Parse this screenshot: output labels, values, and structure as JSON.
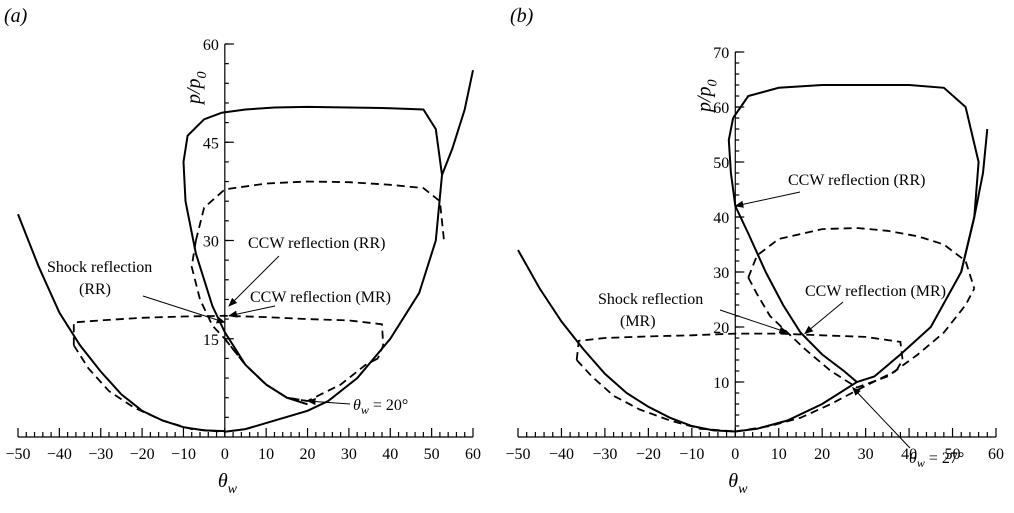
{
  "chart_data": [
    {
      "panel_label": "(a)",
      "type": "line",
      "xlabel": "θ_w",
      "ylabel": "p/p_0",
      "xlim": [
        -50,
        60
      ],
      "ylim": [
        0,
        60
      ],
      "x_ticks": [
        -50,
        -40,
        -30,
        -20,
        -10,
        0,
        10,
        20,
        30,
        40,
        50,
        60
      ],
      "y_ticks": [
        15,
        30,
        45,
        60
      ],
      "curves": {
        "solid_upper_loop": [
          [
            -0.8,
            49.5
          ],
          [
            5,
            50
          ],
          [
            12,
            50.3
          ],
          [
            20,
            50.4
          ],
          [
            30,
            50.3
          ],
          [
            40,
            50.2
          ],
          [
            48,
            50
          ],
          [
            51,
            47
          ],
          [
            52.5,
            40
          ],
          [
            51,
            30
          ],
          [
            47,
            22
          ],
          [
            40,
            15
          ],
          [
            32,
            9
          ],
          [
            25,
            5.5
          ],
          [
            20,
            4
          ],
          [
            12,
            2.5
          ],
          [
            5,
            1.2
          ],
          [
            0,
            0.8
          ]
        ],
        "solid_upper_loop_left": [
          [
            -0.8,
            49.5
          ],
          [
            -5,
            48.5
          ],
          [
            -9,
            46
          ],
          [
            -10,
            42
          ],
          [
            -9.5,
            36
          ],
          [
            -7,
            28
          ],
          [
            -3,
            20
          ],
          [
            0,
            16
          ],
          [
            5,
            11
          ],
          [
            10,
            8
          ],
          [
            15,
            6
          ],
          [
            20,
            5
          ]
        ],
        "solid_right_branch": [
          [
            52.5,
            40
          ],
          [
            55,
            44
          ],
          [
            58,
            50
          ],
          [
            60,
            56
          ]
        ],
        "solid_left_parabola": [
          [
            -50,
            34
          ],
          [
            -45,
            26
          ],
          [
            -40,
            19
          ],
          [
            -35,
            14
          ],
          [
            -30,
            10
          ],
          [
            -25,
            6.5
          ],
          [
            -20,
            4
          ],
          [
            -15,
            2.5
          ],
          [
            -10,
            1.5
          ],
          [
            -5,
            1
          ],
          [
            0,
            0.9
          ]
        ],
        "dashed_upper_loop": [
          [
            -7,
            30
          ],
          [
            -5,
            35
          ],
          [
            0,
            37.8
          ],
          [
            10,
            38.7
          ],
          [
            20,
            39
          ],
          [
            30,
            38.9
          ],
          [
            40,
            38.5
          ],
          [
            48,
            38
          ],
          [
            52,
            36
          ],
          [
            53,
            30
          ]
        ],
        "dashed_upper_loop_left": [
          [
            -7,
            30
          ],
          [
            -8,
            26
          ],
          [
            -6,
            21
          ],
          [
            -3,
            17
          ],
          [
            0,
            15
          ],
          [
            5,
            11
          ],
          [
            10,
            8
          ],
          [
            15,
            6
          ],
          [
            20,
            5.5
          ]
        ],
        "dashed_lower_loop": [
          [
            -36.5,
            14
          ],
          [
            -36.5,
            17.5
          ],
          [
            -30,
            17.8
          ],
          [
            -20,
            18.2
          ],
          [
            -10,
            18.4
          ],
          [
            0,
            18.5
          ],
          [
            10,
            18.3
          ],
          [
            20,
            18
          ],
          [
            30,
            17.8
          ],
          [
            38,
            17.2
          ],
          [
            38.3,
            14
          ],
          [
            37,
            12
          ]
        ],
        "dashed_left_branch": [
          [
            -36.5,
            14
          ],
          [
            -33,
            10.5
          ],
          [
            -28,
            7
          ],
          [
            -22,
            4.5
          ],
          [
            -15,
            2.5
          ],
          [
            -8,
            1.2
          ],
          [
            0,
            0.8
          ]
        ],
        "dashed_right_branch": [
          [
            0,
            15
          ],
          [
            5,
            11
          ],
          [
            10,
            8
          ],
          [
            15,
            6
          ],
          [
            20,
            5.5
          ],
          [
            28,
            8
          ],
          [
            34,
            11
          ],
          [
            37,
            12
          ]
        ]
      },
      "annotations": [
        {
          "label": "CCW reflection (RR)",
          "point": [
            1,
            20
          ]
        },
        {
          "label": "Shock reflection",
          "label2": "(RR)",
          "point": [
            0,
            17.5
          ]
        },
        {
          "label": "CCW reflection (MR)",
          "point": [
            1,
            18.5
          ]
        },
        {
          "label": "θ_w = 20°",
          "point": [
            20,
            5.5
          ]
        }
      ]
    },
    {
      "panel_label": "(b)",
      "type": "line",
      "xlabel": "θ_w",
      "ylabel": "p/p_0",
      "xlim": [
        -50,
        60
      ],
      "ylim": [
        0,
        70
      ],
      "x_ticks": [
        -50,
        -40,
        -30,
        -20,
        -10,
        0,
        10,
        20,
        30,
        40,
        50,
        60
      ],
      "y_ticks": [
        10,
        20,
        30,
        40,
        50,
        60,
        70
      ],
      "curves": {
        "solid_upper_loop": [
          [
            -0.5,
            58
          ],
          [
            3,
            62
          ],
          [
            10,
            63.5
          ],
          [
            20,
            64
          ],
          [
            30,
            64
          ],
          [
            40,
            64
          ],
          [
            48,
            63.5
          ],
          [
            53,
            60
          ],
          [
            56,
            50
          ],
          [
            55,
            40
          ],
          [
            52,
            30
          ],
          [
            45,
            20
          ],
          [
            38,
            15
          ],
          [
            32,
            11
          ],
          [
            28,
            10
          ],
          [
            20,
            6
          ],
          [
            12,
            3
          ],
          [
            5,
            1.5
          ],
          [
            0,
            1
          ]
        ],
        "solid_upper_loop_left": [
          [
            -0.5,
            58
          ],
          [
            -1.5,
            54
          ],
          [
            -1,
            48
          ],
          [
            0,
            42
          ],
          [
            3,
            37
          ],
          [
            7,
            30
          ],
          [
            11,
            24
          ],
          [
            15,
            19
          ],
          [
            20,
            15
          ],
          [
            25,
            12
          ],
          [
            28,
            10
          ]
        ],
        "solid_right_branch": [
          [
            52,
            30
          ],
          [
            55,
            40
          ],
          [
            57,
            48
          ],
          [
            58,
            56
          ]
        ],
        "solid_left_parabola": [
          [
            -50,
            34
          ],
          [
            -45,
            27
          ],
          [
            -40,
            21
          ],
          [
            -35,
            16
          ],
          [
            -30,
            11.5
          ],
          [
            -25,
            8
          ],
          [
            -20,
            5.5
          ],
          [
            -15,
            3.5
          ],
          [
            -10,
            2
          ],
          [
            -5,
            1.2
          ],
          [
            0,
            1
          ]
        ],
        "dashed_upper_loop": [
          [
            3,
            29
          ],
          [
            5,
            33
          ],
          [
            10,
            36
          ],
          [
            20,
            37.8
          ],
          [
            28,
            38
          ],
          [
            35,
            37.5
          ],
          [
            42,
            36.5
          ],
          [
            48,
            35
          ],
          [
            53,
            32
          ],
          [
            55,
            27
          ]
        ],
        "dashed_upper_loop_left": [
          [
            3,
            29
          ],
          [
            5,
            26
          ],
          [
            8,
            22
          ],
          [
            12,
            19
          ],
          [
            16,
            16
          ],
          [
            22,
            12
          ],
          [
            28,
            9
          ],
          [
            35,
            11
          ],
          [
            42,
            15
          ],
          [
            48,
            19
          ],
          [
            53,
            24
          ],
          [
            55,
            27
          ]
        ],
        "dashed_lower_loop": [
          [
            -36.5,
            14
          ],
          [
            -36,
            17.5
          ],
          [
            -30,
            18
          ],
          [
            -20,
            18.3
          ],
          [
            -10,
            18.5
          ],
          [
            0,
            18.8
          ],
          [
            10,
            18.8
          ],
          [
            20,
            18.5
          ],
          [
            30,
            18.2
          ],
          [
            38,
            17.3
          ],
          [
            38.5,
            14
          ],
          [
            37,
            12
          ]
        ],
        "dashed_left_branch": [
          [
            -36.5,
            14
          ],
          [
            -33,
            11
          ],
          [
            -28,
            7.5
          ],
          [
            -22,
            5
          ],
          [
            -15,
            3
          ],
          [
            -8,
            1.5
          ],
          [
            0,
            1
          ]
        ],
        "dashed_right_branch": [
          [
            0,
            1
          ],
          [
            8,
            2
          ],
          [
            15,
            3.5
          ],
          [
            22,
            6
          ],
          [
            28,
            8.5
          ],
          [
            33,
            10.5
          ],
          [
            37,
            12
          ]
        ]
      },
      "annotations": [
        {
          "label": "CCW reflection (RR)",
          "point": [
            0,
            42
          ]
        },
        {
          "label": "Shock reflection",
          "label2": "(MR)",
          "point": [
            12,
            19
          ]
        },
        {
          "label": "CCW reflection (MR)",
          "point": [
            16,
            18.8
          ]
        },
        {
          "label": "θ_w = 27°",
          "point": [
            27,
            9
          ]
        }
      ]
    }
  ]
}
